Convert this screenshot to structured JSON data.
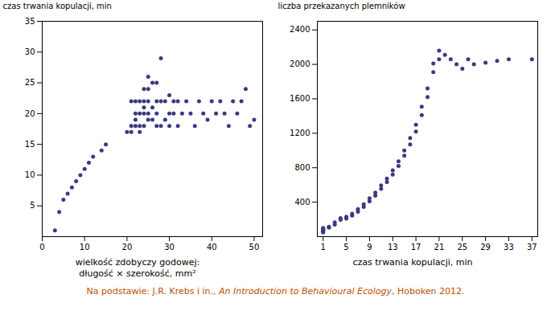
{
  "chart_data": [
    {
      "type": "scatter",
      "xlabel": "wielkość zdobyczy godowej:\ndługość × szerokość, mm²",
      "ylabel": "czas trwania kopulacji, min",
      "x": [
        3,
        4,
        5,
        6,
        7,
        8,
        9,
        10,
        11,
        12,
        14,
        15,
        20,
        21,
        21,
        21,
        22,
        22,
        22,
        22,
        23,
        23,
        23,
        23,
        24,
        24,
        24,
        24,
        24,
        25,
        25,
        25,
        25,
        25,
        26,
        26,
        26,
        27,
        27,
        27,
        27,
        28,
        28,
        28,
        29,
        29,
        30,
        30,
        30,
        31,
        31,
        32,
        32,
        33,
        34,
        35,
        36,
        37,
        38,
        39,
        40,
        41,
        42,
        43,
        44,
        45,
        46,
        47,
        48,
        49,
        50
      ],
      "values": [
        1,
        4,
        6,
        7,
        8,
        9,
        10,
        11,
        12,
        13,
        14,
        15,
        17,
        17,
        18,
        22,
        18,
        19,
        20,
        22,
        17,
        18,
        20,
        22,
        18,
        20,
        21,
        22,
        24,
        19,
        20,
        22,
        24,
        26,
        19,
        21,
        25,
        18,
        20,
        22,
        25,
        18,
        22,
        29,
        19,
        22,
        18,
        20,
        23,
        20,
        22,
        18,
        22,
        20,
        22,
        20,
        18,
        22,
        20,
        19,
        22,
        20,
        22,
        20,
        18,
        22,
        20,
        22,
        24,
        18,
        19
      ],
      "color": "#3a3a82",
      "xlim": [
        0,
        52
      ],
      "ylim": [
        0,
        35
      ],
      "xticks": [
        0,
        10,
        20,
        30,
        40,
        50
      ],
      "yticks": [
        5,
        10,
        15,
        20,
        25,
        30,
        35
      ],
      "grid": false
    },
    {
      "type": "scatter",
      "xlabel": "czas trwania kopulacji, min",
      "ylabel": "liczba przekazanych plemników",
      "x": [
        1,
        1,
        1,
        1,
        1,
        1,
        1,
        1,
        1,
        2,
        2,
        3,
        3,
        4,
        4,
        5,
        5,
        6,
        6,
        7,
        7,
        8,
        8,
        9,
        9,
        10,
        10,
        11,
        11,
        12,
        12,
        13,
        13,
        14,
        14,
        15,
        15,
        16,
        16,
        17,
        17,
        18,
        18,
        19,
        19,
        20,
        20,
        21,
        21,
        22,
        23,
        24,
        25,
        26,
        27,
        29,
        31,
        33,
        37
      ],
      "values": [
        50,
        60,
        65,
        70,
        75,
        80,
        85,
        90,
        100,
        105,
        115,
        140,
        165,
        195,
        215,
        210,
        230,
        245,
        265,
        290,
        320,
        345,
        375,
        410,
        445,
        475,
        510,
        555,
        595,
        635,
        675,
        720,
        770,
        820,
        875,
        940,
        1000,
        1070,
        1145,
        1220,
        1300,
        1410,
        1510,
        1620,
        1720,
        1910,
        2010,
        2060,
        2160,
        2110,
        2060,
        2000,
        1950,
        2060,
        2000,
        2020,
        2040,
        2060,
        2060
      ],
      "color": "#3a3a82",
      "xlim": [
        0,
        38
      ],
      "ylim": [
        0,
        2500
      ],
      "xticks": [
        1,
        5,
        9,
        13,
        17,
        21,
        25,
        29,
        33,
        37
      ],
      "yticks": [
        400,
        800,
        1200,
        1600,
        2000,
        2400
      ],
      "grid": false
    }
  ],
  "caption": {
    "parts": [
      {
        "text": "Na podstawie: J.R. Krebs i in., ",
        "style": "normal"
      },
      {
        "text": "An Introduction to Behavioural Ecology",
        "style": "italic"
      },
      {
        "text": ", Hoboken 2012.",
        "style": "normal"
      }
    ],
    "color": "#c05000"
  }
}
